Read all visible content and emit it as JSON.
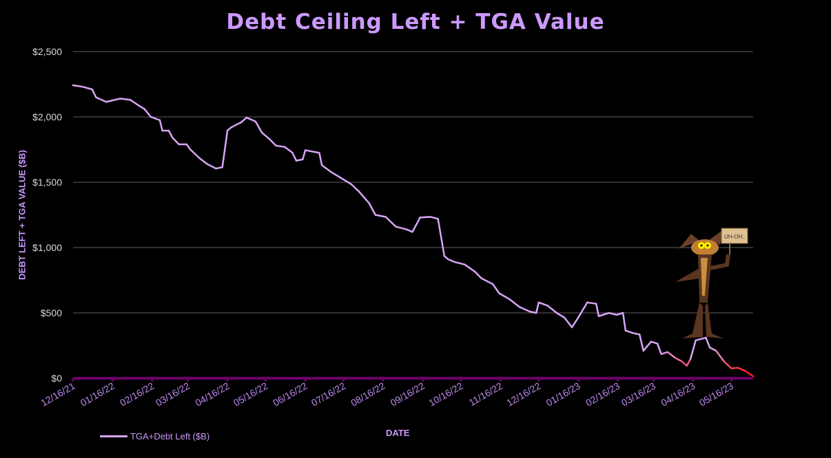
{
  "chart_data": {
    "type": "line",
    "title": "Debt Ceiling Left + TGA Value",
    "xlabel": "DATE",
    "ylabel": "DEBT LEFT + TGA VALUE ($B)",
    "ylim": [
      0,
      2500
    ],
    "yticks": [
      "$0",
      "$500",
      "$1,000",
      "$1,500",
      "$2,000",
      "$2,500"
    ],
    "ytick_values": [
      0,
      500,
      1000,
      1500,
      2000,
      2500
    ],
    "xticks": [
      "12/16/21",
      "01/16/22",
      "02/16/22",
      "03/16/22",
      "04/16/22",
      "05/16/22",
      "06/16/22",
      "07/16/22",
      "08/16/22",
      "09/16/22",
      "10/16/22",
      "11/16/22",
      "12/16/22",
      "01/16/23",
      "02/16/23",
      "03/16/23",
      "04/16/23",
      "05/16/23"
    ],
    "xlim": [
      "2021-12-16",
      "2023-06-02"
    ],
    "grid": "horizontal",
    "legend_placement": "bottom-left",
    "colors": {
      "line": "#d7a6f7",
      "line_low": "#ff2020",
      "axis": "#6a006a",
      "title": "#cc99ff"
    },
    "annotation_image": {
      "subject": "cartoon coyote holding sign",
      "sign_text": "UH-OH.."
    },
    "series": [
      {
        "name": "TGA+Debt Left ($B)",
        "points": [
          [
            "2021-12-16",
            2242
          ],
          [
            "2021-12-24",
            2230
          ],
          [
            "2021-12-31",
            2210
          ],
          [
            "2022-01-03",
            2150
          ],
          [
            "2022-01-11",
            2115
          ],
          [
            "2022-01-22",
            2140
          ],
          [
            "2022-01-30",
            2130
          ],
          [
            "2022-02-05",
            2090
          ],
          [
            "2022-02-10",
            2060
          ],
          [
            "2022-02-15",
            2000
          ],
          [
            "2022-02-22",
            1975
          ],
          [
            "2022-02-24",
            1895
          ],
          [
            "2022-03-01",
            1895
          ],
          [
            "2022-03-04",
            1840
          ],
          [
            "2022-03-09",
            1790
          ],
          [
            "2022-03-15",
            1790
          ],
          [
            "2022-03-18",
            1750
          ],
          [
            "2022-03-25",
            1685
          ],
          [
            "2022-03-31",
            1640
          ],
          [
            "2022-04-07",
            1605
          ],
          [
            "2022-04-12",
            1615
          ],
          [
            "2022-04-16",
            1895
          ],
          [
            "2022-04-19",
            1920
          ],
          [
            "2022-04-27",
            1960
          ],
          [
            "2022-05-01",
            1995
          ],
          [
            "2022-05-08",
            1965
          ],
          [
            "2022-05-13",
            1880
          ],
          [
            "2022-05-19",
            1830
          ],
          [
            "2022-05-24",
            1780
          ],
          [
            "2022-05-31",
            1770
          ],
          [
            "2022-06-06",
            1725
          ],
          [
            "2022-06-09",
            1665
          ],
          [
            "2022-06-14",
            1675
          ],
          [
            "2022-06-16",
            1745
          ],
          [
            "2022-06-27",
            1725
          ],
          [
            "2022-06-29",
            1630
          ],
          [
            "2022-07-06",
            1580
          ],
          [
            "2022-07-17",
            1515
          ],
          [
            "2022-07-22",
            1485
          ],
          [
            "2022-07-28",
            1430
          ],
          [
            "2022-08-05",
            1340
          ],
          [
            "2022-08-10",
            1250
          ],
          [
            "2022-08-18",
            1235
          ],
          [
            "2022-08-26",
            1160
          ],
          [
            "2022-09-03",
            1140
          ],
          [
            "2022-09-08",
            1120
          ],
          [
            "2022-09-14",
            1230
          ],
          [
            "2022-09-22",
            1235
          ],
          [
            "2022-09-28",
            1220
          ],
          [
            "2022-10-03",
            935
          ],
          [
            "2022-10-06",
            910
          ],
          [
            "2022-10-11",
            890
          ],
          [
            "2022-10-19",
            870
          ],
          [
            "2022-10-27",
            815
          ],
          [
            "2022-11-01",
            765
          ],
          [
            "2022-11-10",
            720
          ],
          [
            "2022-11-15",
            650
          ],
          [
            "2022-11-23",
            605
          ],
          [
            "2022-12-01",
            545
          ],
          [
            "2022-12-09",
            510
          ],
          [
            "2022-12-14",
            500
          ],
          [
            "2022-12-16",
            580
          ],
          [
            "2022-12-23",
            555
          ],
          [
            "2022-12-30",
            500
          ],
          [
            "2023-01-05",
            465
          ],
          [
            "2023-01-11",
            390
          ],
          [
            "2023-01-16",
            465
          ],
          [
            "2023-01-23",
            580
          ],
          [
            "2023-01-30",
            570
          ],
          [
            "2023-02-01",
            475
          ],
          [
            "2023-02-09",
            500
          ],
          [
            "2023-02-15",
            485
          ],
          [
            "2023-02-20",
            500
          ],
          [
            "2023-02-22",
            365
          ],
          [
            "2023-02-28",
            345
          ],
          [
            "2023-03-05",
            335
          ],
          [
            "2023-03-08",
            210
          ],
          [
            "2023-03-14",
            280
          ],
          [
            "2023-03-19",
            265
          ],
          [
            "2023-03-22",
            185
          ],
          [
            "2023-03-27",
            200
          ],
          [
            "2023-04-02",
            155
          ],
          [
            "2023-04-07",
            130
          ],
          [
            "2023-04-11",
            95
          ],
          [
            "2023-04-14",
            150
          ],
          [
            "2023-04-18",
            290
          ],
          [
            "2023-04-26",
            310
          ],
          [
            "2023-04-29",
            235
          ],
          [
            "2023-05-04",
            210
          ],
          [
            "2023-05-10",
            130
          ],
          [
            "2023-05-16",
            75
          ],
          [
            "2023-05-21",
            80
          ],
          [
            "2023-05-27",
            55
          ],
          [
            "2023-06-02",
            15
          ]
        ]
      }
    ]
  }
}
